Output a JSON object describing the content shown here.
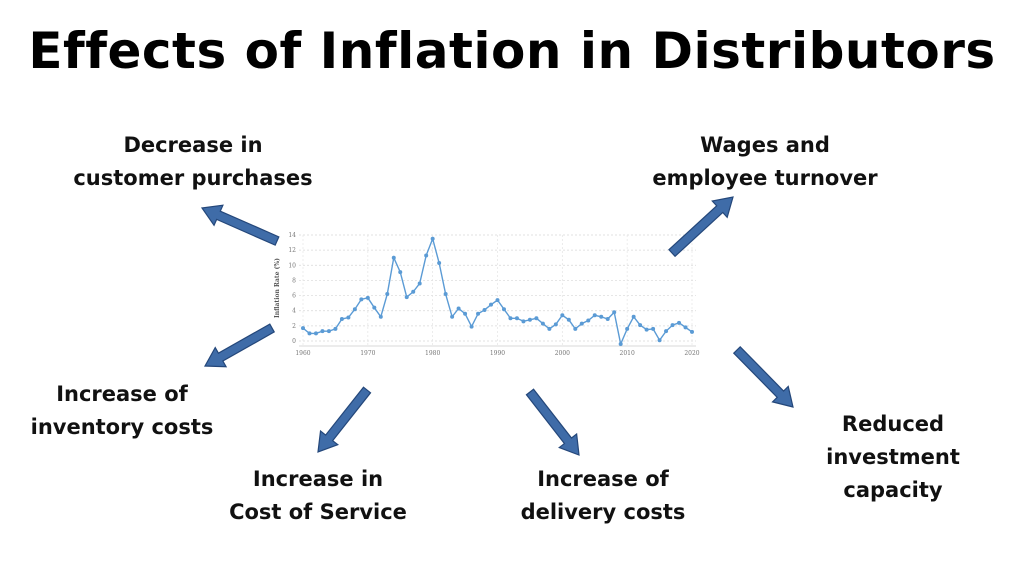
{
  "title": "Effects of Inflation in Distributors",
  "effects": [
    {
      "line1": "Decrease in",
      "line2": "customer purchases"
    },
    {
      "line1": "Wages and",
      "line2": "employee turnover"
    },
    {
      "line1": "Increase of",
      "line2": "inventory costs"
    },
    {
      "line1": "Increase in",
      "line2": "Cost of Service"
    },
    {
      "line1": "Increase of",
      "line2": "delivery costs"
    },
    {
      "line1": "Reduced",
      "line2": "investment",
      "line3": "capacity"
    }
  ],
  "colors": {
    "arrow": "#3f6ca8",
    "arrow_outline": "#24477a",
    "line": "#5b9bd5"
  },
  "chart_data": {
    "type": "line",
    "ylabel": "Inflation Rate (%)",
    "xlabel": "",
    "xlim": [
      1960,
      2020
    ],
    "ylim": [
      0,
      14
    ],
    "grid": true,
    "xticks": [
      "1960",
      "1970",
      "1980",
      "1990",
      "2000",
      "2010",
      "2020"
    ],
    "yticks": [
      "0",
      "2",
      "4",
      "6",
      "8",
      "10",
      "12",
      "14"
    ],
    "x": [
      1960,
      1961,
      1962,
      1963,
      1964,
      1965,
      1966,
      1967,
      1968,
      1969,
      1970,
      1971,
      1972,
      1973,
      1974,
      1975,
      1976,
      1977,
      1978,
      1979,
      1980,
      1981,
      1982,
      1983,
      1984,
      1985,
      1986,
      1987,
      1988,
      1989,
      1990,
      1991,
      1992,
      1993,
      1994,
      1995,
      1996,
      1997,
      1998,
      1999,
      2000,
      2001,
      2002,
      2003,
      2004,
      2005,
      2006,
      2007,
      2008,
      2009,
      2010,
      2011,
      2012,
      2013,
      2014,
      2015,
      2016,
      2017,
      2018,
      2019,
      2020
    ],
    "values": [
      1.7,
      1.0,
      1.0,
      1.3,
      1.3,
      1.6,
      2.9,
      3.1,
      4.2,
      5.5,
      5.7,
      4.4,
      3.2,
      6.2,
      11.0,
      9.1,
      5.8,
      6.5,
      7.6,
      11.3,
      13.5,
      10.3,
      6.2,
      3.2,
      4.3,
      3.6,
      1.9,
      3.6,
      4.1,
      4.8,
      5.4,
      4.2,
      3.0,
      3.0,
      2.6,
      2.8,
      3.0,
      2.3,
      1.6,
      2.2,
      3.4,
      2.8,
      1.6,
      2.3,
      2.7,
      3.4,
      3.2,
      2.9,
      3.8,
      -0.4,
      1.6,
      3.2,
      2.1,
      1.5,
      1.6,
      0.1,
      1.3,
      2.1,
      2.4,
      1.8,
      1.2
    ]
  }
}
